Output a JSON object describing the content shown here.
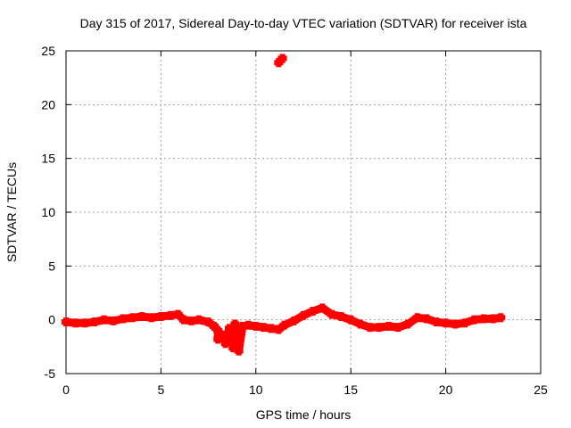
{
  "chart_data": {
    "type": "scatter",
    "title": "Day 315 of 2017, Sidereal Day-to-day VTEC variation (SDTVAR) for receiver ista",
    "xlabel": "GPS time / hours",
    "ylabel": "SDTVAR / TECUs",
    "xlim": [
      0,
      25
    ],
    "ylim": [
      -5,
      25
    ],
    "xticks": [
      0,
      5,
      10,
      15,
      20,
      25
    ],
    "yticks": [
      -5,
      0,
      5,
      10,
      15,
      20,
      25
    ],
    "grid": true,
    "legend": "none",
    "marker": "plus",
    "series": [
      {
        "name": "SDTVAR",
        "color": "#ff0000",
        "x": [
          0.0,
          0.5,
          1.0,
          1.5,
          2.0,
          2.5,
          3.0,
          3.5,
          4.0,
          4.5,
          5.0,
          5.5,
          5.9,
          6.2,
          6.6,
          7.0,
          7.5,
          7.8,
          8.0,
          8.3,
          8.6,
          8.9,
          9.1,
          9.3,
          9.6,
          10.0,
          10.4,
          10.8,
          11.2,
          11.5,
          12.0,
          12.5,
          13.0,
          13.5,
          14.0,
          14.5,
          15.0,
          15.5,
          16.0,
          16.5,
          17.0,
          17.5,
          18.0,
          18.5,
          19.0,
          19.5,
          20.0,
          20.5,
          21.0,
          21.5,
          22.0,
          22.5,
          22.9,
          11.2,
          11.3,
          11.4,
          8.0,
          8.4,
          8.8,
          9.1
        ],
        "y": [
          -0.2,
          -0.3,
          -0.3,
          -0.2,
          0.0,
          -0.1,
          0.1,
          0.2,
          0.3,
          0.2,
          0.3,
          0.4,
          0.5,
          0.0,
          -0.1,
          0.0,
          -0.2,
          -0.6,
          -1.0,
          -1.4,
          -0.8,
          -0.4,
          -1.2,
          -0.6,
          -0.5,
          -0.6,
          -0.7,
          -0.8,
          -0.9,
          -0.5,
          -0.1,
          0.4,
          0.8,
          1.1,
          0.5,
          0.3,
          0.0,
          -0.4,
          -0.7,
          -0.7,
          -0.6,
          -0.7,
          -0.4,
          0.2,
          0.1,
          -0.2,
          -0.3,
          -0.4,
          -0.3,
          0.0,
          0.1,
          0.1,
          0.2,
          23.9,
          24.1,
          24.3,
          -1.8,
          -2.2,
          -2.6,
          -2.9
        ]
      }
    ]
  }
}
